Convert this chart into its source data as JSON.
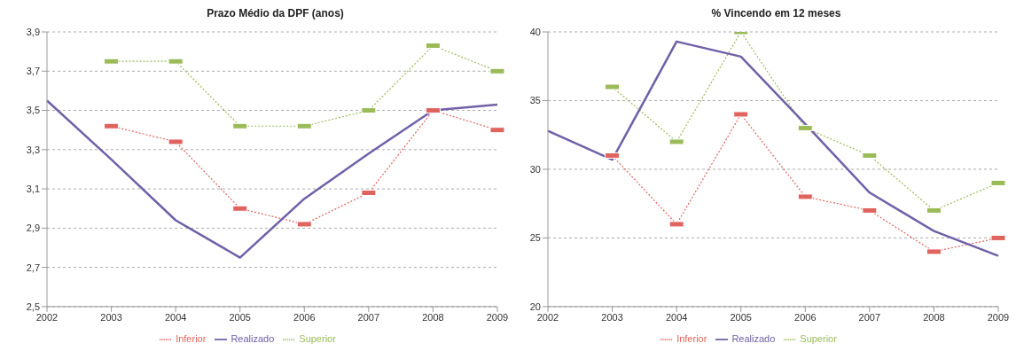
{
  "chart_data": [
    {
      "type": "line",
      "title": "Prazo Médio da DPF (anos)",
      "categories": [
        "2002",
        "2003",
        "2004",
        "2005",
        "2006",
        "2007",
        "2008",
        "2009"
      ],
      "ylim": [
        2.5,
        3.9
      ],
      "yticks": [
        {
          "value": 2.5,
          "label": "2,5"
        },
        {
          "value": 2.7,
          "label": "2,7"
        },
        {
          "value": 2.9,
          "label": "2,9"
        },
        {
          "value": 3.1,
          "label": "3,1"
        },
        {
          "value": 3.3,
          "label": "3,3"
        },
        {
          "value": 3.5,
          "label": "3,5"
        },
        {
          "value": 3.7,
          "label": "3,7"
        },
        {
          "value": 3.9,
          "label": "3,9"
        }
      ],
      "grid": "y",
      "legend": "bottom",
      "series": [
        {
          "name": "Inferior",
          "color": "#e0635e",
          "line_style": "dotted",
          "marker": "square",
          "values": [
            null,
            3.42,
            3.34,
            3.0,
            2.92,
            3.08,
            3.5,
            3.4
          ]
        },
        {
          "name": "Superior",
          "color": "#9bbb59",
          "line_style": "dotted",
          "marker": "square",
          "values": [
            null,
            3.75,
            3.75,
            3.42,
            3.42,
            3.5,
            3.83,
            3.7
          ]
        },
        {
          "name": "Realizado",
          "color": "#7060a8",
          "line_style": "solid",
          "marker": "none",
          "values": [
            3.55,
            3.25,
            2.94,
            2.75,
            3.05,
            3.28,
            3.5,
            3.53
          ]
        }
      ]
    },
    {
      "type": "line",
      "title": "% Vincendo em 12 meses",
      "categories": [
        "2002",
        "2003",
        "2004",
        "2005",
        "2006",
        "2007",
        "2008",
        "2009"
      ],
      "ylim": [
        20,
        40
      ],
      "yticks": [
        20,
        25,
        30,
        35,
        40
      ],
      "grid": "y",
      "legend": "bottom",
      "series": [
        {
          "name": "Inferior",
          "color": "#e0635e",
          "line_style": "dotted",
          "marker": "square",
          "values": [
            null,
            31,
            26,
            34,
            28,
            27,
            24,
            25
          ]
        },
        {
          "name": "Superior",
          "color": "#9bbb59",
          "line_style": "dotted",
          "marker": "square",
          "values": [
            null,
            36,
            32,
            40,
            33,
            31,
            27,
            29
          ]
        },
        {
          "name": "Realizado",
          "color": "#7060a8",
          "line_style": "solid",
          "marker": "none",
          "values": [
            32.8,
            30.7,
            39.3,
            38.2,
            33.3,
            28.3,
            25.5,
            23.7
          ]
        }
      ]
    }
  ]
}
